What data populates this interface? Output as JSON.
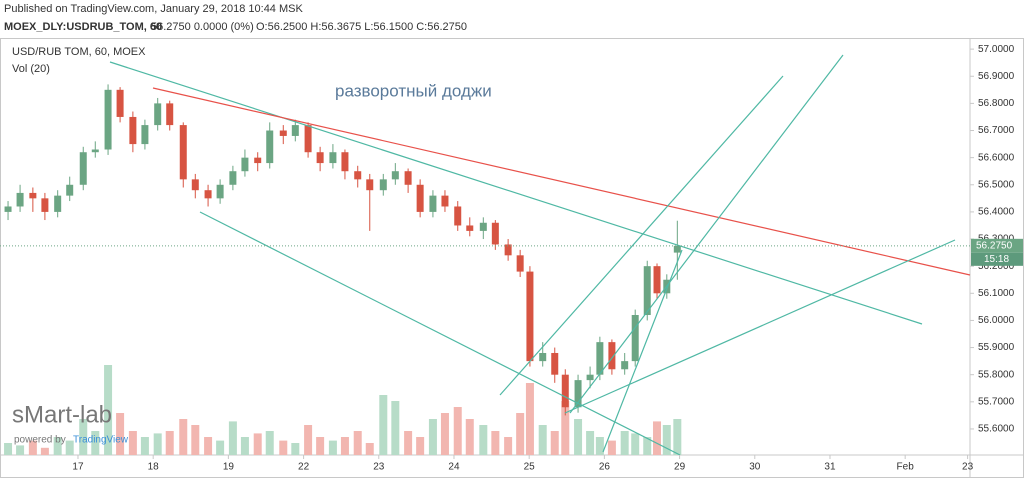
{
  "header": {
    "published": "Published on TradingView.com, January 29, 2018 10:44 MSK",
    "symbol": "MOEX_DLY:USDRUB_TOM, 60",
    "change": "56.2750 0.0000 (0%)",
    "ohlc": "O:56.2500 H:56.3675 L:56.1500 C:56.2750"
  },
  "chart_data": {
    "type": "candlestick",
    "title": "USD/RUB TOM, 60, MOEX",
    "volume_title": "Vol (20)",
    "annotation": "разворотный доджи",
    "watermark": "sMart-lab",
    "powered_by": "powered by",
    "brand": "TradingView",
    "up_color": "#6ba583",
    "down_color": "#d75442",
    "volume_up_color": "#b7dcc8",
    "volume_down_color": "#f2b6b0",
    "x": [
      -0.93,
      -0.77,
      -0.6,
      -0.44,
      -0.27,
      -0.11,
      0.07,
      0.23,
      0.4,
      0.56,
      0.73,
      0.89,
      1.06,
      1.22,
      1.4,
      1.56,
      1.73,
      1.89,
      2.06,
      2.22,
      2.39,
      2.55,
      2.73,
      2.89,
      3.06,
      3.22,
      3.39,
      3.55,
      3.72,
      3.88,
      4.06,
      4.22,
      4.39,
      4.55,
      4.72,
      4.88,
      5.05,
      5.21,
      5.39,
      5.55,
      5.72,
      5.88,
      6.01,
      6.18,
      6.34,
      6.48,
      6.65,
      6.81,
      6.94,
      7.1,
      7.27,
      7.41,
      7.57,
      7.7,
      7.83,
      7.97
    ],
    "open": [
      56.4,
      56.42,
      56.47,
      56.45,
      56.4,
      56.46,
      56.5,
      56.62,
      56.63,
      56.85,
      56.75,
      56.65,
      56.72,
      56.8,
      56.72,
      56.52,
      56.48,
      56.45,
      56.5,
      56.55,
      56.6,
      56.58,
      56.7,
      56.68,
      56.72,
      56.62,
      56.58,
      56.62,
      56.55,
      56.52,
      56.48,
      56.52,
      56.55,
      56.5,
      56.4,
      56.46,
      56.42,
      56.35,
      56.33,
      56.36,
      56.28,
      56.24,
      56.18,
      55.85,
      55.88,
      55.8,
      55.68,
      55.78,
      55.8,
      55.92,
      55.82,
      55.85,
      56.02,
      56.2,
      56.1,
      56.25
    ],
    "high": [
      56.44,
      56.5,
      56.49,
      56.47,
      56.48,
      56.53,
      56.64,
      56.66,
      56.87,
      56.86,
      56.77,
      56.74,
      56.82,
      56.81,
      56.73,
      56.54,
      56.5,
      56.52,
      56.57,
      56.63,
      56.62,
      56.73,
      56.72,
      56.74,
      56.73,
      56.64,
      56.65,
      56.63,
      56.57,
      56.54,
      56.54,
      56.58,
      56.56,
      56.52,
      56.48,
      56.48,
      56.44,
      56.38,
      56.38,
      56.37,
      56.3,
      56.26,
      56.2,
      55.92,
      55.9,
      55.82,
      55.8,
      55.83,
      55.94,
      55.93,
      55.88,
      56.04,
      56.22,
      56.21,
      56.17,
      56.3675
    ],
    "low": [
      56.37,
      56.4,
      56.4,
      56.37,
      56.38,
      56.44,
      56.48,
      56.6,
      56.61,
      56.73,
      56.62,
      56.63,
      56.7,
      56.7,
      56.49,
      56.45,
      56.42,
      56.43,
      56.48,
      56.53,
      56.55,
      56.56,
      56.65,
      56.66,
      56.6,
      56.55,
      56.56,
      56.52,
      56.49,
      56.33,
      56.46,
      56.5,
      56.47,
      56.38,
      56.38,
      56.4,
      56.33,
      56.31,
      56.3,
      56.26,
      56.22,
      56.16,
      55.83,
      55.83,
      55.77,
      55.65,
      55.66,
      55.75,
      55.78,
      55.8,
      55.8,
      55.83,
      56.0,
      56.08,
      56.08,
      56.15
    ],
    "close": [
      56.42,
      56.47,
      56.45,
      56.4,
      56.46,
      56.5,
      56.62,
      56.63,
      56.85,
      56.75,
      56.65,
      56.72,
      56.8,
      56.72,
      56.52,
      56.48,
      56.45,
      56.5,
      56.55,
      56.6,
      56.58,
      56.7,
      56.68,
      56.72,
      56.62,
      56.58,
      56.62,
      56.55,
      56.52,
      56.48,
      56.52,
      56.55,
      56.5,
      56.4,
      56.46,
      56.42,
      56.35,
      56.33,
      56.36,
      56.28,
      56.24,
      56.18,
      55.85,
      55.88,
      55.8,
      55.68,
      55.78,
      55.8,
      55.92,
      55.82,
      55.85,
      56.02,
      56.2,
      56.1,
      56.15,
      56.275
    ],
    "volume": [
      10,
      8,
      12,
      6,
      15,
      12,
      30,
      20,
      75,
      35,
      20,
      15,
      18,
      20,
      30,
      25,
      15,
      12,
      28,
      15,
      18,
      20,
      12,
      10,
      25,
      15,
      12,
      15,
      20,
      10,
      50,
      45,
      20,
      15,
      30,
      35,
      40,
      30,
      25,
      20,
      15,
      35,
      60,
      25,
      20,
      45,
      30,
      20,
      15,
      12,
      20,
      18,
      15,
      28,
      25,
      30
    ],
    "volume_lim": [
      0,
      100
    ],
    "last_price": {
      "value": 56.275,
      "label": "56.2750"
    },
    "countdown": "15:18",
    "xlim": [
      -1.037,
      11.862
    ],
    "xticks": [
      {
        "value": 0,
        "label": "17"
      },
      {
        "value": 1,
        "label": "18"
      },
      {
        "value": 2,
        "label": "19"
      },
      {
        "value": 3,
        "label": "22"
      },
      {
        "value": 4,
        "label": "23"
      },
      {
        "value": 5,
        "label": "24"
      },
      {
        "value": 6,
        "label": "25"
      },
      {
        "value": 7,
        "label": "26"
      },
      {
        "value": 8,
        "label": "29"
      },
      {
        "value": 9,
        "label": "30"
      },
      {
        "value": 10,
        "label": "31"
      },
      {
        "value": 11,
        "label": "Feb"
      },
      {
        "value": 11.83,
        "label": "23"
      }
    ],
    "ylim": [
      55.504,
      57.041
    ],
    "yticks": [
      {
        "value": 55.6,
        "label": "55.6000"
      },
      {
        "value": 55.7,
        "label": "55.7000"
      },
      {
        "value": 55.8,
        "label": "55.8000"
      },
      {
        "value": 55.9,
        "label": "55.9000"
      },
      {
        "value": 56.0,
        "label": "56.0000"
      },
      {
        "value": 56.1,
        "label": "56.1000"
      },
      {
        "value": 56.2,
        "label": "56.2000"
      },
      {
        "value": 56.3,
        "label": "56.3000"
      },
      {
        "value": 56.4,
        "label": "56.4000"
      },
      {
        "value": 56.5,
        "label": "56.5000"
      },
      {
        "value": 56.6,
        "label": "56.6000"
      },
      {
        "value": 56.7,
        "label": "56.7000"
      },
      {
        "value": 56.8,
        "label": "56.8000"
      },
      {
        "value": 56.9,
        "label": "56.9000"
      },
      {
        "value": 57.0,
        "label": "57.0000"
      }
    ]
  }
}
